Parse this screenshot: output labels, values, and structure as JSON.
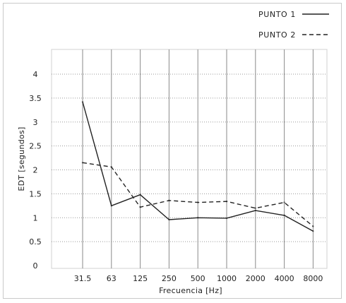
{
  "chart_data": {
    "type": "line",
    "title": "",
    "xlabel": "Frecuencia [Hz]",
    "ylabel": "EDT [segundos]",
    "categories": [
      "31.5",
      "63",
      "125",
      "250",
      "500",
      "1000",
      "2000",
      "4000",
      "8000"
    ],
    "y_ticks": [
      "0",
      "0.5",
      "1",
      "1.5",
      "2",
      "2.5",
      "3",
      "3.5",
      "4"
    ],
    "ylim": [
      0,
      4.3
    ],
    "grid": "horizontal dotted at each y tick, vertical solid at each category",
    "legend_placement": "top-right, outside plot",
    "series": [
      {
        "name": "PUNTO 1",
        "style": "solid",
        "color": "#222222",
        "values": [
          3.42,
          1.25,
          1.48,
          0.96,
          1.0,
          0.99,
          1.15,
          1.05,
          0.72
        ]
      },
      {
        "name": "PUNTO 2",
        "style": "dashed",
        "color": "#222222",
        "values": [
          2.15,
          2.06,
          1.22,
          1.36,
          1.32,
          1.34,
          1.2,
          1.32,
          0.82
        ]
      }
    ]
  }
}
